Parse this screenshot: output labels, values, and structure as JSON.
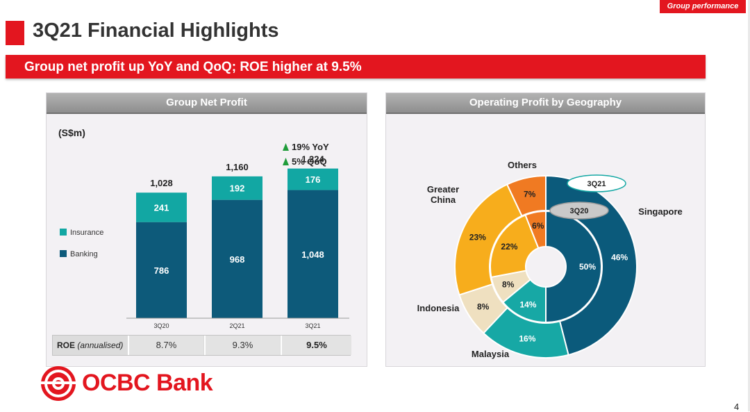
{
  "header": {
    "tag": "Group performance",
    "title": "3Q21 Financial Highlights",
    "subtitle": "Group net profit up YoY and QoQ; ROE higher at 9.5%"
  },
  "left_panel": {
    "title": "Group Net Profit",
    "unit": "(S$m)",
    "growth": [
      "19% YoY",
      "5% QoQ"
    ],
    "roe_label": "ROE",
    "roe_label_note": "(annualised)",
    "roe_values": [
      "8.7%",
      "9.3%",
      "9.5%"
    ]
  },
  "right_panel": {
    "title": "Operating Profit by Geography"
  },
  "footer": {
    "logo_text": "OCBC Bank",
    "page_number": "4"
  },
  "colors": {
    "red": "#e3161f",
    "banking": "#0d5a7a",
    "insurance": "#12a7a3",
    "singapore": "#0b5a7b",
    "malaysia": "#17a8a5",
    "indonesia": "#efe0c0",
    "greater_china": "#f7ad1c",
    "others": "#f07a22"
  },
  "chart_data": [
    {
      "type": "bar",
      "title": "Group Net Profit",
      "ylabel": "(S$m)",
      "stacked": true,
      "categories": [
        "3Q20",
        "2Q21",
        "3Q21"
      ],
      "series": [
        {
          "name": "Banking",
          "values": [
            786,
            968,
            1048
          ]
        },
        {
          "name": "Insurance",
          "values": [
            241,
            192,
            176
          ]
        }
      ],
      "totals": [
        1028,
        1160,
        1224
      ],
      "total_labels": [
        "1,028",
        "1,160",
        "1,224"
      ],
      "value_labels": {
        "Banking": [
          "786",
          "968",
          "1,048"
        ],
        "Insurance": [
          "241",
          "192",
          "176"
        ]
      },
      "legend": [
        "Insurance",
        "Banking"
      ],
      "legend_position": "left"
    },
    {
      "type": "pie",
      "title": "Operating Profit by Geography",
      "donut": true,
      "categories": [
        "Singapore",
        "Malaysia",
        "Indonesia",
        "Greater China",
        "Others"
      ],
      "rings": [
        {
          "name": "3Q21",
          "ring": "outer",
          "values": [
            46,
            16,
            8,
            23,
            7
          ]
        },
        {
          "name": "3Q20",
          "ring": "inner",
          "values": [
            50,
            14,
            8,
            22,
            6
          ]
        }
      ]
    }
  ]
}
